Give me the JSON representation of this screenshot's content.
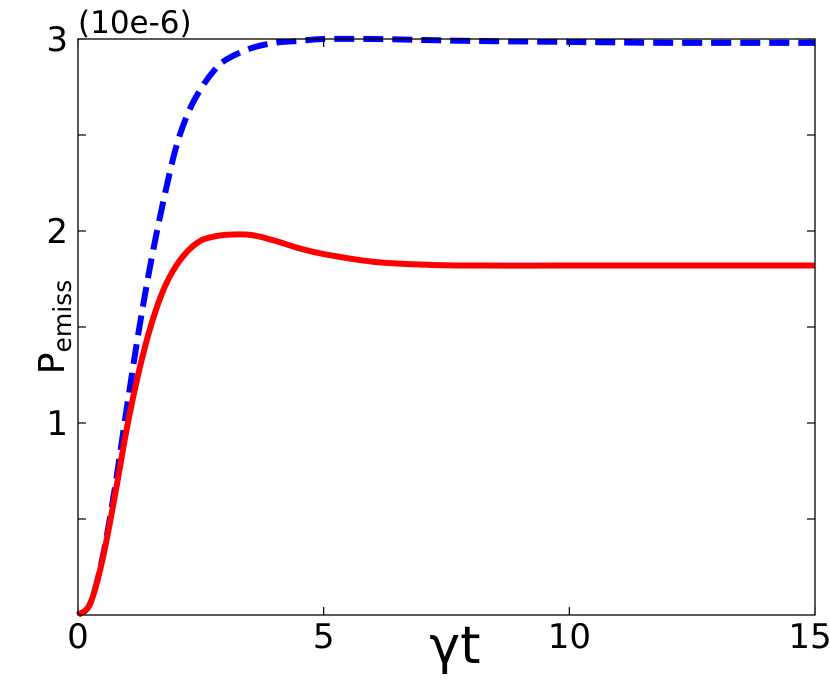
{
  "chart_data": {
    "type": "line",
    "title": "",
    "xlabel": "γt",
    "ylabel_main": "P",
    "ylabel_sub": "emiss",
    "scale_label": "(10e-6)",
    "xlim": [
      0,
      15
    ],
    "ylim": [
      0,
      3
    ],
    "x_ticks": [
      0,
      5,
      10,
      15
    ],
    "x_tick_labels": [
      "0",
      "5",
      "10",
      "15"
    ],
    "y_ticks": [
      1,
      2,
      3
    ],
    "y_tick_labels": [
      "1",
      "2",
      "3"
    ],
    "y_minor_ticks": [
      0.5,
      1.5,
      2.5
    ],
    "grid": false,
    "series": [
      {
        "style": "dashed",
        "color": "#0000ff",
        "x": [
          0,
          0.25,
          0.5,
          0.75,
          1.0,
          1.25,
          1.5,
          1.75,
          2.0,
          2.25,
          2.5,
          2.75,
          3.0,
          3.5,
          4.0,
          4.5,
          5.0,
          6.0,
          7.0,
          8.0,
          10.0,
          12.0,
          15.0
        ],
        "y": [
          0,
          0.06,
          0.3,
          0.66,
          1.09,
          1.5,
          1.86,
          2.17,
          2.44,
          2.62,
          2.74,
          2.83,
          2.89,
          2.95,
          2.98,
          2.99,
          3.0,
          3.0,
          2.995,
          2.99,
          2.985,
          2.98,
          2.98
        ]
      },
      {
        "style": "solid",
        "color": "#ff0000",
        "x": [
          0,
          0.25,
          0.5,
          0.75,
          1.0,
          1.25,
          1.5,
          1.75,
          2.0,
          2.25,
          2.5,
          2.75,
          3.0,
          3.5,
          4.0,
          4.5,
          5.0,
          6.0,
          7.0,
          8.0,
          10.0,
          12.0,
          15.0
        ],
        "y": [
          0,
          0.06,
          0.29,
          0.62,
          0.98,
          1.28,
          1.52,
          1.7,
          1.82,
          1.9,
          1.95,
          1.97,
          1.98,
          1.98,
          1.95,
          1.91,
          1.88,
          1.84,
          1.825,
          1.82,
          1.82,
          1.82,
          1.82
        ]
      }
    ]
  }
}
